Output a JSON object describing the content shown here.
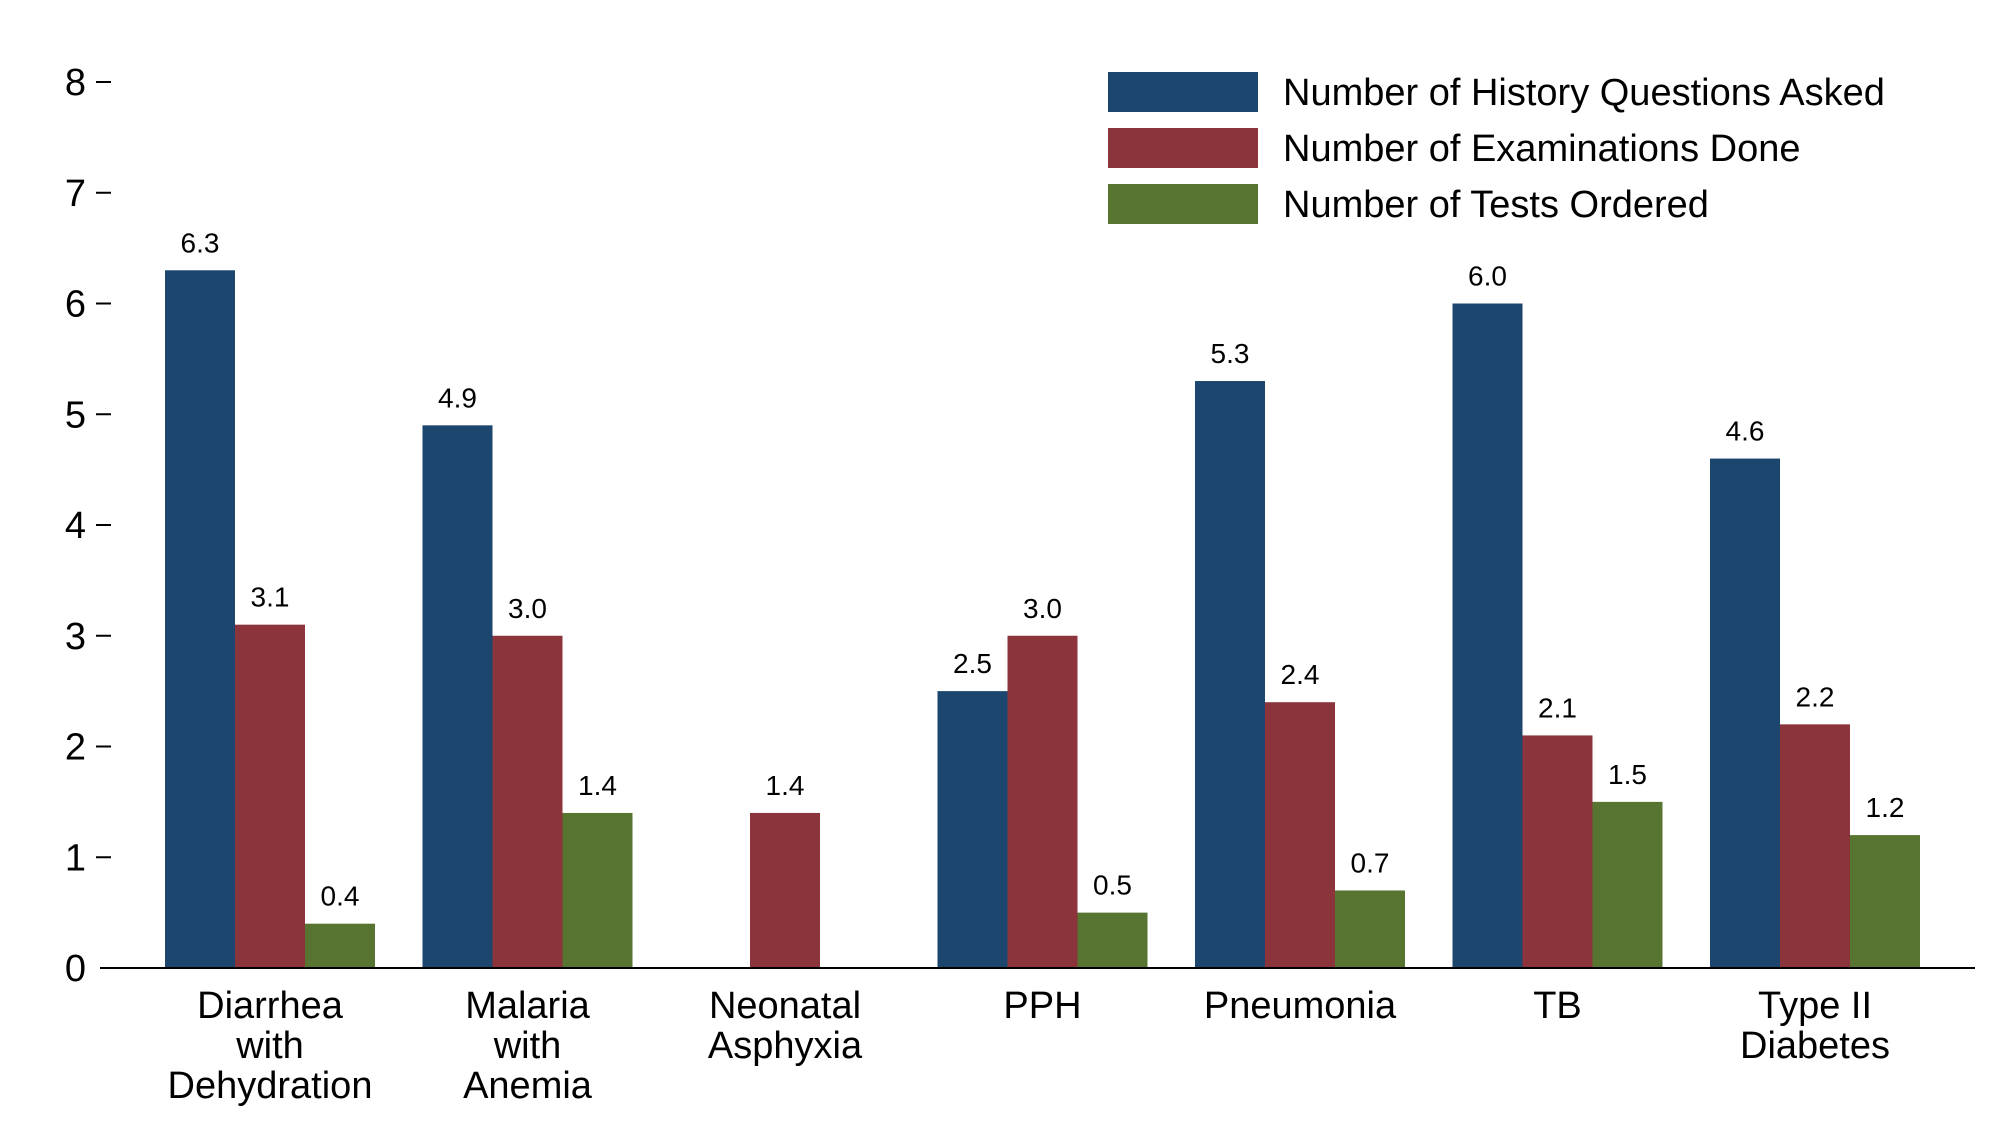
{
  "chart_data": {
    "type": "bar",
    "categories": [
      [
        "Diarrhea",
        "with",
        "Dehydration"
      ],
      [
        "Malaria",
        "with",
        "Anemia"
      ],
      [
        "Neonatal",
        "Asphyxia"
      ],
      [
        "PPH"
      ],
      [
        "Pneumonia"
      ],
      [
        "TB"
      ],
      [
        "Type II",
        "Diabetes"
      ]
    ],
    "series": [
      {
        "name": "Number of History Questions Asked",
        "color": "#1c466e",
        "values": [
          6.3,
          4.9,
          null,
          2.5,
          5.3,
          6.0,
          4.6
        ],
        "labels": [
          "6.3",
          "4.9",
          "",
          "2.5",
          "5.3",
          "6.0",
          "4.6"
        ]
      },
      {
        "name": "Number of Examinations Done",
        "color": "#8b343c",
        "values": [
          3.1,
          3.0,
          1.4,
          3.0,
          2.4,
          2.1,
          2.2
        ],
        "labels": [
          "3.1",
          "3.0",
          "1.4",
          "3.0",
          "2.4",
          "2.1",
          "2.2"
        ]
      },
      {
        "name": "Number of Tests Ordered",
        "color": "#577530",
        "values": [
          0.4,
          1.4,
          null,
          0.5,
          0.7,
          1.5,
          1.2
        ],
        "labels": [
          "0.4",
          "1.4",
          "",
          "0.5",
          "0.7",
          "1.5",
          "1.2"
        ]
      }
    ],
    "ylim": [
      0,
      8
    ],
    "yticks": [
      "0",
      "1",
      "2",
      "3",
      "4",
      "5",
      "6",
      "7",
      "8"
    ],
    "title": "",
    "xlabel": "",
    "ylabel": "",
    "grid": false,
    "legend_position": "top-right"
  }
}
